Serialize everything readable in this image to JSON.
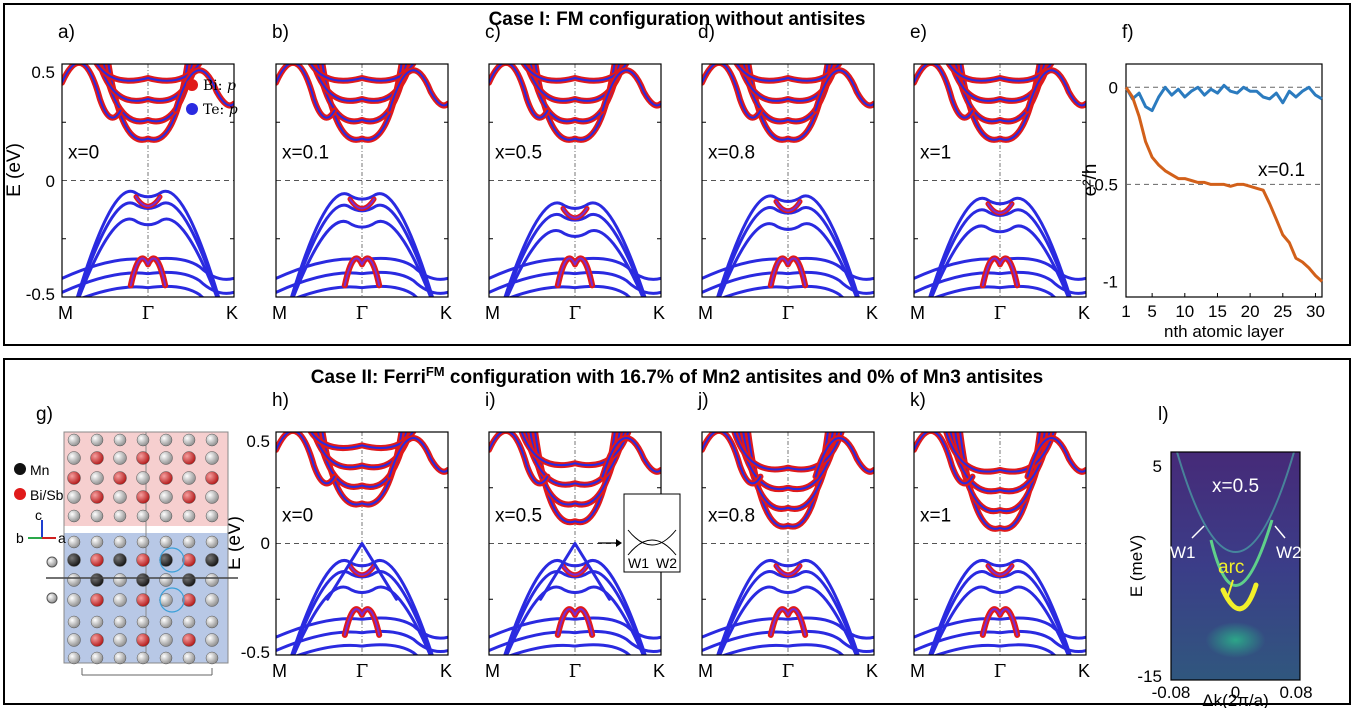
{
  "case1": {
    "title": "Case I:   FM configuration without antisites",
    "panels": [
      {
        "letter": "a)",
        "x_label": "x=0"
      },
      {
        "letter": "b)",
        "x_label": "x=0.1"
      },
      {
        "letter": "c)",
        "x_label": "x=0.5"
      },
      {
        "letter": "d)",
        "x_label": "x=0.8"
      },
      {
        "letter": "e)",
        "x_label": "x=1"
      }
    ],
    "legend": [
      {
        "label": "Bi: ",
        "orb": "p",
        "color": "#e01a1a"
      },
      {
        "label": "Te: ",
        "orb": "p",
        "color": "#2a2ae0"
      }
    ],
    "y_label": "E (eV)",
    "y_ticks": [
      "0.5",
      "0",
      "-0.5"
    ],
    "kpath": [
      "M",
      "Γ",
      "K"
    ]
  },
  "panel_f": {
    "letter": "f)",
    "y_label": "e²/h",
    "y_ticks": [
      "0",
      "-0.5",
      "-1"
    ],
    "x_ticks": [
      "1",
      "5",
      "10",
      "15",
      "20",
      "25",
      "30"
    ],
    "x_label": "nth atomic layer",
    "annotation": "x=0.1",
    "chart_data": {
      "type": "line",
      "x": [
        1,
        2,
        3,
        4,
        5,
        6,
        7,
        8,
        9,
        10,
        11,
        12,
        13,
        14,
        15,
        16,
        17,
        18,
        19,
        20,
        21,
        22,
        23,
        24,
        25,
        26,
        27,
        28,
        29,
        30,
        31
      ],
      "ylim": [
        -1.08,
        0.12
      ],
      "xlim": [
        1,
        31
      ],
      "series": [
        {
          "color": "#2b7bbf",
          "values": [
            0,
            -0.06,
            -0.03,
            -0.1,
            -0.12,
            -0.05,
            0,
            -0.04,
            -0.01,
            -0.05,
            -0.02,
            0,
            -0.04,
            -0.01,
            -0.03,
            0.01,
            -0.02,
            -0.03,
            0,
            -0.02,
            -0.02,
            -0.05,
            -0.06,
            -0.03,
            -0.08,
            -0.02,
            -0.05,
            -0.02,
            0,
            -0.04,
            -0.06
          ]
        },
        {
          "color": "#d2601a",
          "values": [
            0,
            -0.05,
            -0.15,
            -0.28,
            -0.36,
            -0.4,
            -0.43,
            -0.45,
            -0.47,
            -0.47,
            -0.48,
            -0.49,
            -0.49,
            -0.5,
            -0.5,
            -0.5,
            -0.51,
            -0.5,
            -0.5,
            -0.51,
            -0.52,
            -0.53,
            -0.6,
            -0.68,
            -0.76,
            -0.8,
            -0.88,
            -0.9,
            -0.93,
            -0.97,
            -1.0
          ]
        }
      ]
    }
  },
  "case2": {
    "title_pre": "Case II:   Ferri",
    "title_sup": "FM",
    "title_post": " configuration with 16.7% of Mn2 antisites and 0% of Mn3 antisites",
    "panels": [
      {
        "letter": "h)",
        "x_label": "x=0"
      },
      {
        "letter": "i)",
        "x_label": "x=0.5"
      },
      {
        "letter": "j)",
        "x_label": "x=0.8"
      },
      {
        "letter": "k)",
        "x_label": "x=1"
      }
    ],
    "inset_labels": [
      "W1",
      "W2"
    ],
    "y_label": "E (eV)",
    "y_ticks": [
      "0.5",
      "0",
      "-0.5"
    ],
    "kpath": [
      "M",
      "Γ",
      "K"
    ]
  },
  "panel_g": {
    "letter": "g)",
    "legend": [
      {
        "label": "Mn",
        "color": "#111111"
      },
      {
        "label": "Bi/Sb",
        "color": "#e01a1a"
      }
    ],
    "axes": [
      "c",
      "b",
      "a"
    ]
  },
  "panel_l": {
    "letter": "l)",
    "annotation": "x=0.5",
    "labels": {
      "w1": "W1",
      "w2": "W2",
      "arc": "arc"
    },
    "y_label": "E (meV)",
    "y_ticks": [
      "5",
      "-15"
    ],
    "x_ticks": [
      "-0.08",
      "0",
      "0.08"
    ],
    "x_label": "Δk(2π/a)"
  }
}
